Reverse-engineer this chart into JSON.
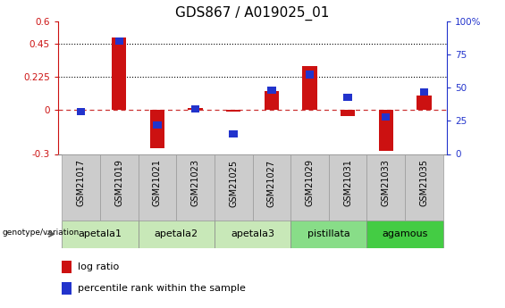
{
  "title": "GDS867 / A019025_01",
  "samples": [
    "GSM21017",
    "GSM21019",
    "GSM21021",
    "GSM21023",
    "GSM21025",
    "GSM21027",
    "GSM21029",
    "GSM21031",
    "GSM21033",
    "GSM21035"
  ],
  "log_ratio": [
    0.0,
    0.49,
    -0.26,
    0.01,
    -0.01,
    0.13,
    0.3,
    -0.04,
    -0.28,
    0.1
  ],
  "percentile": [
    32,
    85,
    22,
    34,
    15,
    48,
    60,
    43,
    28,
    47
  ],
  "groups": [
    {
      "label": "apetala1",
      "samples": [
        0,
        1
      ],
      "color": "#c8e8b8"
    },
    {
      "label": "apetala2",
      "samples": [
        2,
        3
      ],
      "color": "#c8e8b8"
    },
    {
      "label": "apetala3",
      "samples": [
        4,
        5
      ],
      "color": "#c8e8b8"
    },
    {
      "label": "pistillata",
      "samples": [
        6,
        7
      ],
      "color": "#88dd88"
    },
    {
      "label": "agamous",
      "samples": [
        8,
        9
      ],
      "color": "#44cc44"
    }
  ],
  "ylim_left": [
    -0.3,
    0.6
  ],
  "ylim_right": [
    0,
    100
  ],
  "yticks_left": [
    -0.3,
    0.0,
    0.225,
    0.45,
    0.6
  ],
  "ytick_labels_left": [
    "-0.3",
    "0",
    "0.225",
    "0.45",
    "0.6"
  ],
  "yticks_right": [
    0,
    25,
    50,
    75,
    100
  ],
  "ytick_labels_right": [
    "0",
    "25",
    "50",
    "75",
    "100%"
  ],
  "dotted_lines": [
    0.225,
    0.45
  ],
  "bar_color": "#cc1111",
  "blue_color": "#2233cc",
  "zero_line_color": "#cc3333",
  "group_label_text": "genotype/variation",
  "legend_items": [
    "log ratio",
    "percentile rank within the sample"
  ],
  "title_fontsize": 11,
  "sample_label_fontsize": 7,
  "group_label_fontsize": 8
}
